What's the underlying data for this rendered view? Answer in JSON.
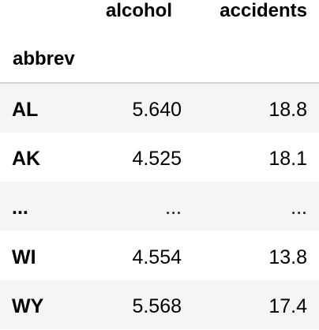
{
  "table": {
    "columns": [
      "alcohol",
      "accidents"
    ],
    "index_name": "abbrev",
    "rows": [
      {
        "index": "AL",
        "alcohol": "5.640",
        "accidents": "18.8"
      },
      {
        "index": "AK",
        "alcohol": "4.525",
        "accidents": "18.1"
      },
      {
        "index": "...",
        "alcohol": "...",
        "accidents": "..."
      },
      {
        "index": "WI",
        "alcohol": "4.554",
        "accidents": "13.8"
      },
      {
        "index": "WY",
        "alcohol": "5.568",
        "accidents": "17.4"
      }
    ]
  },
  "colors": {
    "stripe": "#f5f5f5",
    "divider": "#d4d4d4",
    "text": "#000000",
    "background": "#ffffff"
  }
}
